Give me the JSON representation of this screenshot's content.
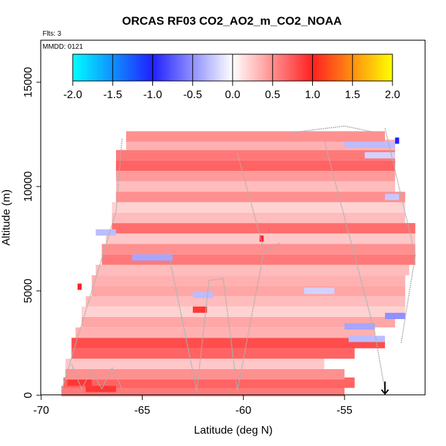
{
  "chart_data": {
    "type": "heatmap",
    "title": "ORCAS RF03 CO2_AO2_m_CO2_NOAA",
    "flights_label": "Flts: 3",
    "date_label": "MMDD: 0121",
    "xlabel": "Latitude (deg N)",
    "ylabel": "Altitude (m)",
    "xlim": [
      -70,
      -51
    ],
    "ylim": [
      0,
      17000
    ],
    "x_ticks": [
      "-70",
      "-65",
      "-60",
      "-55"
    ],
    "x_tick_values": [
      -70,
      -65,
      -60,
      -55
    ],
    "y_ticks": [
      "0",
      "5000",
      "10000",
      "15000"
    ],
    "y_tick_values": [
      0,
      5000,
      10000,
      15000
    ],
    "colorbar": {
      "range": [
        -2.0,
        2.0
      ],
      "tick_labels": [
        "-2.0",
        "-1.5",
        "-1.0",
        "-0.5",
        "0.0",
        "0.5",
        "1.0",
        "1.5",
        "2.0"
      ],
      "tick_values": [
        -2.0,
        -1.5,
        -1.0,
        -0.5,
        0.0,
        0.5,
        1.0,
        1.5,
        2.0
      ],
      "colors": {
        "low": "#00ffff",
        "mid_low": "#2020ff",
        "zero": "#ffffff",
        "mid_high": "#ff2020",
        "high": "#ffff00"
      }
    },
    "marker_arrow_latitude": -53,
    "flight_track_color": "#b0b0b0",
    "bands": [
      {
        "alt": 200,
        "lat_start": -69,
        "lat_end": -55,
        "value": 0.6
      },
      {
        "alt": 600,
        "lat_start": -68.9,
        "lat_end": -54.5,
        "value": 0.7
      },
      {
        "alt": 1000,
        "lat_start": -68.8,
        "lat_end": -55,
        "value": 0.5
      },
      {
        "alt": 1500,
        "lat_start": -68.8,
        "lat_end": -56,
        "value": 0.25
      },
      {
        "alt": 2000,
        "lat_start": -68.5,
        "lat_end": -54.5,
        "value": 0.7
      },
      {
        "alt": 2500,
        "lat_start": -68.5,
        "lat_end": -53,
        "value": 0.8
      },
      {
        "alt": 3000,
        "lat_start": -68.3,
        "lat_end": -53.5,
        "value": 0.35
      },
      {
        "alt": 3500,
        "lat_start": -68,
        "lat_end": -52.5,
        "value": 0.4
      },
      {
        "alt": 4000,
        "lat_start": -68,
        "lat_end": -52,
        "value": 0.2
      },
      {
        "alt": 4500,
        "lat_start": -67.8,
        "lat_end": -52,
        "value": 0.3
      },
      {
        "alt": 5000,
        "lat_start": -67.5,
        "lat_end": -52,
        "value": 0.4
      },
      {
        "alt": 5500,
        "lat_start": -67.5,
        "lat_end": -52,
        "value": 0.35
      },
      {
        "alt": 6000,
        "lat_start": -67.3,
        "lat_end": -51.8,
        "value": 0.3
      },
      {
        "alt": 6500,
        "lat_start": -67,
        "lat_end": -51.5,
        "value": 0.6
      },
      {
        "alt": 7000,
        "lat_start": -67,
        "lat_end": -51.5,
        "value": 0.5
      },
      {
        "alt": 7500,
        "lat_start": -66.8,
        "lat_end": -51.5,
        "value": 0.25
      },
      {
        "alt": 8000,
        "lat_start": -66.5,
        "lat_end": -51.5,
        "value": 0.65
      },
      {
        "alt": 8500,
        "lat_start": -66.5,
        "lat_end": -52,
        "value": 0.3
      },
      {
        "alt": 9000,
        "lat_start": -66.5,
        "lat_end": -52,
        "value": 0.2
      },
      {
        "alt": 9500,
        "lat_start": -66.3,
        "lat_end": -52,
        "value": 0.5
      },
      {
        "alt": 10000,
        "lat_start": -66.3,
        "lat_end": -52.5,
        "value": 0.3
      },
      {
        "alt": 10500,
        "lat_start": -66.3,
        "lat_end": -52.5,
        "value": 0.45
      },
      {
        "alt": 11000,
        "lat_start": -66.3,
        "lat_end": -52.5,
        "value": 0.7
      },
      {
        "alt": 11500,
        "lat_start": -66.3,
        "lat_end": -52.5,
        "value": 0.6
      },
      {
        "alt": 12000,
        "lat_start": -65.8,
        "lat_end": -52.5,
        "value": 0.35
      },
      {
        "alt": 12400,
        "lat_start": -65.8,
        "lat_end": -53,
        "value": 0.5
      }
    ],
    "patches": [
      {
        "alt": 12000,
        "lat_start": -55,
        "lat_end": -52.5,
        "value": -0.3
      },
      {
        "alt": 11500,
        "lat_start": -54,
        "lat_end": -52.5,
        "value": -0.2
      },
      {
        "alt": 12200,
        "lat_start": -52.5,
        "lat_end": -52.3,
        "value": -1.0
      },
      {
        "alt": 9500,
        "lat_start": -53,
        "lat_end": -52.3,
        "value": -0.25
      },
      {
        "alt": 7800,
        "lat_start": -67.3,
        "lat_end": -66.3,
        "value": -0.3
      },
      {
        "alt": 6600,
        "lat_start": -65.5,
        "lat_end": -63.5,
        "value": -0.4
      },
      {
        "alt": 4800,
        "lat_start": -62.5,
        "lat_end": -61.5,
        "value": -0.3
      },
      {
        "alt": 3800,
        "lat_start": -53,
        "lat_end": -52,
        "value": -0.5
      },
      {
        "alt": 3300,
        "lat_start": -55,
        "lat_end": -53.5,
        "value": -0.4
      },
      {
        "alt": 2700,
        "lat_start": -54.8,
        "lat_end": -53,
        "value": -0.3
      },
      {
        "alt": 5000,
        "lat_start": -57,
        "lat_end": -55.5,
        "value": -0.2
      },
      {
        "alt": 4100,
        "lat_start": -62.5,
        "lat_end": -61.8,
        "value": 0.9
      },
      {
        "alt": 7500,
        "lat_start": -59.2,
        "lat_end": -59,
        "value": 1.0
      },
      {
        "alt": 5200,
        "lat_start": -68.2,
        "lat_end": -68,
        "value": 1.0
      },
      {
        "alt": 600,
        "lat_start": -68.7,
        "lat_end": -67.5,
        "value": 0.9
      },
      {
        "alt": 300,
        "lat_start": -67.8,
        "lat_end": -66.3,
        "value": 0.9
      }
    ]
  }
}
